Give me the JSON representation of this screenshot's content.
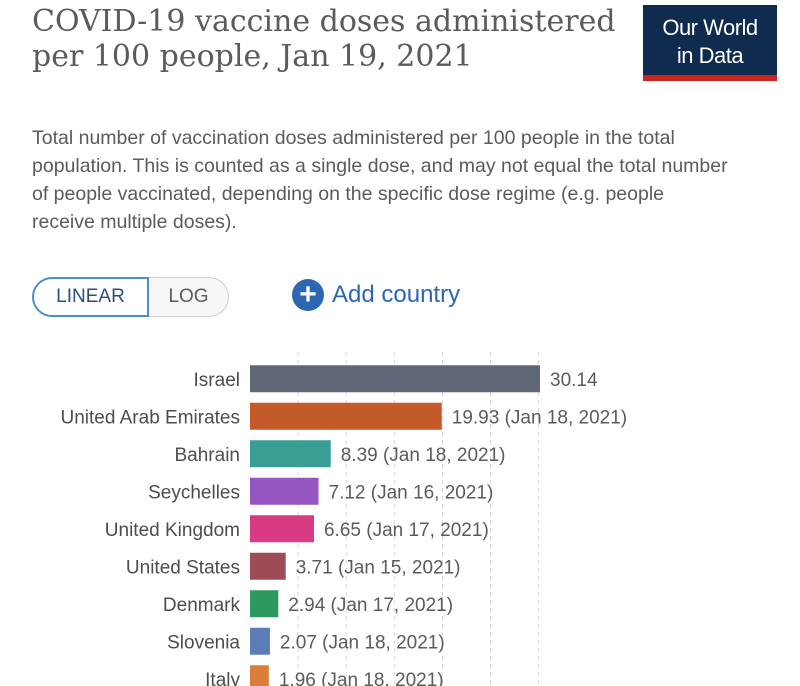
{
  "header": {
    "title": "COVID-19 vaccine doses administered per 100 people, Jan 19, 2021",
    "subtitle": "Total number of vaccination doses administered per 100 people in the total population. This is counted as a single dose, and may not equal the total number of people vaccinated, depending on the specific dose regime (e.g. people receive multiple doses).",
    "logo_line1": "Our World",
    "logo_line2": "in Data"
  },
  "controls": {
    "linear_label": "LINEAR",
    "log_label": "LOG",
    "selected_scale": "LINEAR",
    "add_country_label": "Add country",
    "add_icon": "plus-circle-icon"
  },
  "colors": {
    "title_text": "#5b5b5b",
    "logo_background": "#0f2c4e",
    "logo_underline": "#ce261e",
    "link_blue": "#2d67b4"
  },
  "chart_data": {
    "type": "bar",
    "orientation": "horizontal",
    "title": "COVID-19 vaccine doses administered per 100 people, Jan 19, 2021",
    "xlim": [
      0,
      30.14
    ],
    "grid": true,
    "categories": [
      "Israel",
      "United Arab Emirates",
      "Bahrain",
      "Seychelles",
      "United Kingdom",
      "United States",
      "Denmark",
      "Slovenia",
      "Italy"
    ],
    "values": [
      30.14,
      19.93,
      8.39,
      7.12,
      6.65,
      3.71,
      2.94,
      2.07,
      1.96
    ],
    "value_labels": [
      "30.14",
      "19.93 (Jan 18, 2021)",
      "8.39 (Jan 18, 2021)",
      "7.12 (Jan 16, 2021)",
      "6.65 (Jan 17, 2021)",
      "3.71 (Jan 15, 2021)",
      "2.94 (Jan 17, 2021)",
      "2.07 (Jan 18, 2021)",
      "1.96 (Jan 18, 2021)"
    ],
    "bar_colors": [
      "#5e6677",
      "#c45a2a",
      "#3a9e96",
      "#9656c1",
      "#d93a83",
      "#9d4b54",
      "#2c9a5e",
      "#5c7cb8",
      "#d97e3b"
    ]
  }
}
